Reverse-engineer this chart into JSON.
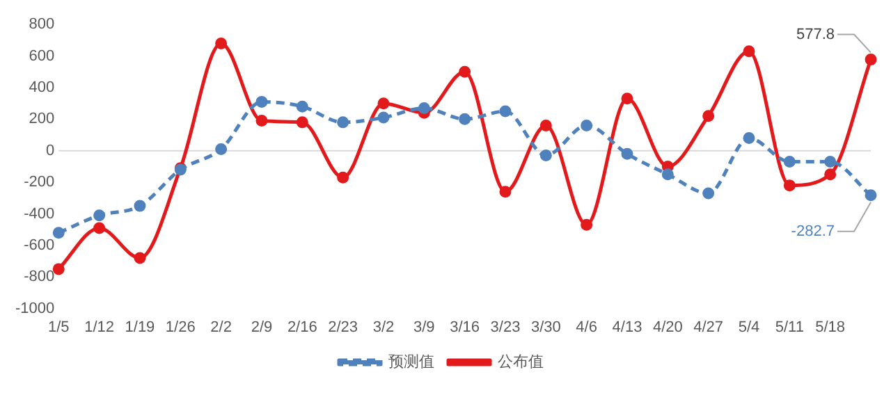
{
  "chart_data": {
    "type": "line",
    "categories": [
      "1/5",
      "1/12",
      "1/19",
      "1/26",
      "2/2",
      "2/9",
      "2/16",
      "2/23",
      "3/2",
      "3/9",
      "3/16",
      "3/23",
      "3/30",
      "4/6",
      "4/13",
      "4/20",
      "4/27",
      "5/4",
      "5/11",
      "5/18",
      null
    ],
    "series": [
      {
        "name": "预测值",
        "color": "#4f81bd",
        "line_style": "dashed",
        "values": [
          -520,
          -410,
          -350,
          -120,
          10,
          310,
          280,
          180,
          210,
          270,
          200,
          250,
          -30,
          160,
          -20,
          -150,
          -270,
          80,
          -70,
          -70,
          -282.7
        ],
        "value_labels": [
          null,
          null,
          null,
          null,
          null,
          null,
          null,
          null,
          null,
          null,
          null,
          null,
          null,
          null,
          null,
          null,
          null,
          null,
          null,
          null,
          "-282.7"
        ]
      },
      {
        "name": "公布值",
        "color": "#e31a1c",
        "line_style": "solid",
        "values": [
          -750,
          -490,
          -680,
          -110,
          680,
          190,
          180,
          -170,
          300,
          240,
          500,
          -260,
          160,
          -470,
          330,
          -100,
          220,
          630,
          -220,
          -150,
          577.8
        ],
        "value_labels": [
          null,
          null,
          null,
          null,
          null,
          null,
          null,
          null,
          null,
          null,
          null,
          null,
          null,
          null,
          null,
          null,
          null,
          null,
          null,
          null,
          "577.8"
        ]
      }
    ],
    "ylim": [
      -1000,
      800
    ],
    "yticks": [
      -1000,
      -800,
      -600,
      -400,
      -200,
      0,
      200,
      400,
      600,
      800
    ],
    "ref_lines": [
      {
        "axis": "y",
        "value": 0,
        "color": "#d9d9d9"
      }
    ],
    "grid": false,
    "legend": "bottom",
    "marker": "circle"
  }
}
